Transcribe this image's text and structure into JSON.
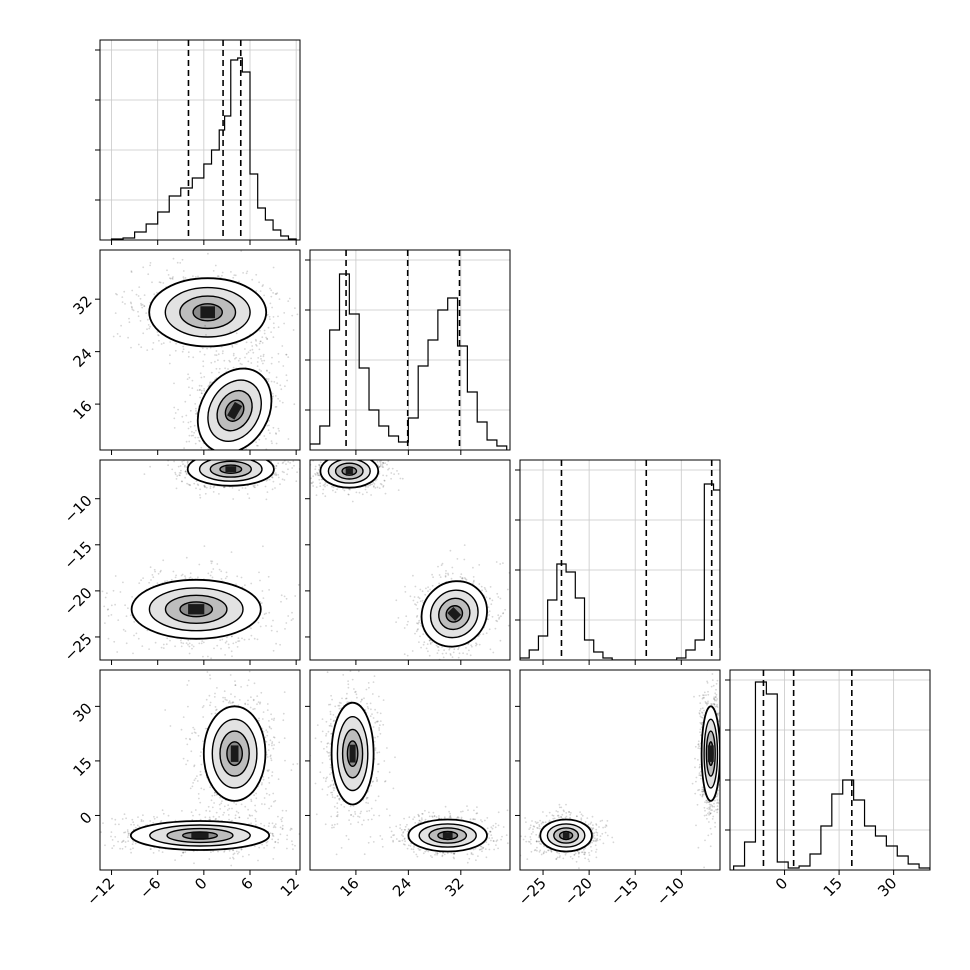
{
  "chart_data": {
    "type": "corner",
    "title": "",
    "quantile_line_style": "dashed",
    "grid": true,
    "axes_labels": [
      "",
      "",
      "",
      ""
    ],
    "parameters": [
      {
        "xlim": [
          -13.5,
          12.5
        ],
        "ticks": [
          -12,
          -6,
          0,
          6,
          12
        ],
        "tick_labels": [
          "−12",
          "−6",
          "0",
          "6",
          "12"
        ],
        "quantiles": [
          -2.0,
          2.5,
          4.8
        ],
        "hist_bins": [
          -12,
          -10.5,
          -9,
          -7.5,
          -6,
          -4.5,
          -3,
          -1.5,
          0,
          1,
          2,
          2.7,
          3.5,
          4.4,
          5,
          6,
          7,
          8,
          9,
          10,
          11,
          12
        ],
        "hist_counts": [
          0.005,
          0.01,
          0.04,
          0.08,
          0.14,
          0.22,
          0.26,
          0.31,
          0.38,
          0.45,
          0.55,
          0.62,
          0.9,
          0.91,
          0.84,
          0.33,
          0.16,
          0.1,
          0.05,
          0.02,
          0.005
        ]
      },
      {
        "xlim": [
          9.0,
          39.5
        ],
        "ticks": [
          16,
          24,
          32
        ],
        "tick_labels": [
          "16",
          "24",
          "32"
        ],
        "quantiles": [
          14.5,
          23.9,
          31.8
        ],
        "hist_bins": [
          9,
          10.5,
          12,
          13.5,
          15,
          16.5,
          18,
          19.5,
          21,
          22.5,
          24,
          25.5,
          27,
          28.5,
          30,
          31.5,
          33,
          34.5,
          36,
          37.5,
          39
        ],
        "hist_counts": [
          0.03,
          0.12,
          0.6,
          0.88,
          0.68,
          0.41,
          0.2,
          0.12,
          0.07,
          0.04,
          0.16,
          0.42,
          0.55,
          0.7,
          0.76,
          0.52,
          0.29,
          0.14,
          0.05,
          0.02
        ]
      },
      {
        "xlim": [
          -27.5,
          -5.8
        ],
        "ticks": [
          -25,
          -20,
          -15,
          -10
        ],
        "tick_labels": [
          "−25",
          "−20",
          "−15",
          "−10"
        ],
        "quantiles": [
          -23.0,
          -13.8,
          -6.7
        ],
        "hist_bins": [
          -27.5,
          -26.5,
          -25.5,
          -24.5,
          -23.5,
          -22.5,
          -21.5,
          -20.5,
          -19.5,
          -18.5,
          -17.5,
          -16.5,
          -15.5,
          -14.5,
          -13.5,
          -12.5,
          -11.5,
          -10.5,
          -9.5,
          -8.5,
          -7.5,
          -6.5,
          -5.8
        ],
        "hist_counts": [
          0.01,
          0.05,
          0.12,
          0.3,
          0.48,
          0.44,
          0.31,
          0.1,
          0.04,
          0.01,
          0.0,
          0.0,
          0.0,
          0.0,
          0.0,
          0.0,
          0.0,
          0.01,
          0.05,
          0.1,
          0.88,
          0.85,
          0.06
        ]
      },
      {
        "xlim": [
          -15,
          40
        ],
        "ticks": [
          0,
          15,
          30
        ],
        "tick_labels": [
          "0",
          "15",
          "30"
        ],
        "quantiles": [
          -5.8,
          2.5,
          18.5
        ],
        "hist_bins": [
          -14,
          -11,
          -8,
          -5,
          -2,
          1,
          4,
          7,
          10,
          13,
          16,
          19,
          22,
          25,
          28,
          31,
          34,
          37,
          40
        ],
        "hist_counts": [
          0.02,
          0.14,
          0.94,
          0.88,
          0.04,
          0.01,
          0.02,
          0.08,
          0.22,
          0.38,
          0.45,
          0.35,
          0.22,
          0.17,
          0.12,
          0.07,
          0.03,
          0.01
        ]
      }
    ],
    "pair_panels": [
      {
        "x": 0,
        "y": 1,
        "clusters": [
          {
            "cx": 0.5,
            "cy": 30.0,
            "sx": 3.8,
            "sy": 2.6,
            "rot": 0,
            "n": 800
          },
          {
            "cx": 4.0,
            "cy": 15.0,
            "sx": 2.2,
            "sy": 3.4,
            "rot": 30,
            "n": 800
          }
        ]
      },
      {
        "x": 0,
        "y": 2,
        "clusters": [
          {
            "cx": 3.5,
            "cy": -6.8,
            "sx": 2.8,
            "sy": 0.9,
            "rot": 0,
            "n": 800
          },
          {
            "cx": -1.0,
            "cy": -22.0,
            "sx": 4.2,
            "sy": 1.6,
            "rot": 0,
            "n": 800
          }
        ]
      },
      {
        "x": 0,
        "y": 3,
        "clusters": [
          {
            "cx": 4.0,
            "cy": 17.0,
            "sx": 2.0,
            "sy": 6.5,
            "rot": 0,
            "n": 800
          },
          {
            "cx": -0.5,
            "cy": -5.5,
            "sx": 4.5,
            "sy": 2.0,
            "rot": 0,
            "n": 800
          }
        ]
      },
      {
        "x": 1,
        "y": 2,
        "clusters": [
          {
            "cx": 15.0,
            "cy": -7.0,
            "sx": 2.2,
            "sy": 0.9,
            "rot": 0,
            "n": 800
          },
          {
            "cx": 31.0,
            "cy": -22.5,
            "sx": 2.6,
            "sy": 1.7,
            "rot": -45,
            "n": 800
          }
        ]
      },
      {
        "x": 1,
        "y": 3,
        "clusters": [
          {
            "cx": 15.5,
            "cy": 17.0,
            "sx": 1.6,
            "sy": 7.0,
            "rot": 0,
            "n": 800
          },
          {
            "cx": 30.0,
            "cy": -5.5,
            "sx": 3.0,
            "sy": 2.2,
            "rot": 0,
            "n": 800
          }
        ]
      },
      {
        "x": 2,
        "y": 3,
        "clusters": [
          {
            "cx": -6.8,
            "cy": 17.0,
            "sx": 0.5,
            "sy": 6.5,
            "rot": 0,
            "n": 800
          },
          {
            "cx": -22.5,
            "cy": -5.5,
            "sx": 1.4,
            "sy": 2.2,
            "rot": 0,
            "n": 800
          }
        ]
      }
    ]
  }
}
